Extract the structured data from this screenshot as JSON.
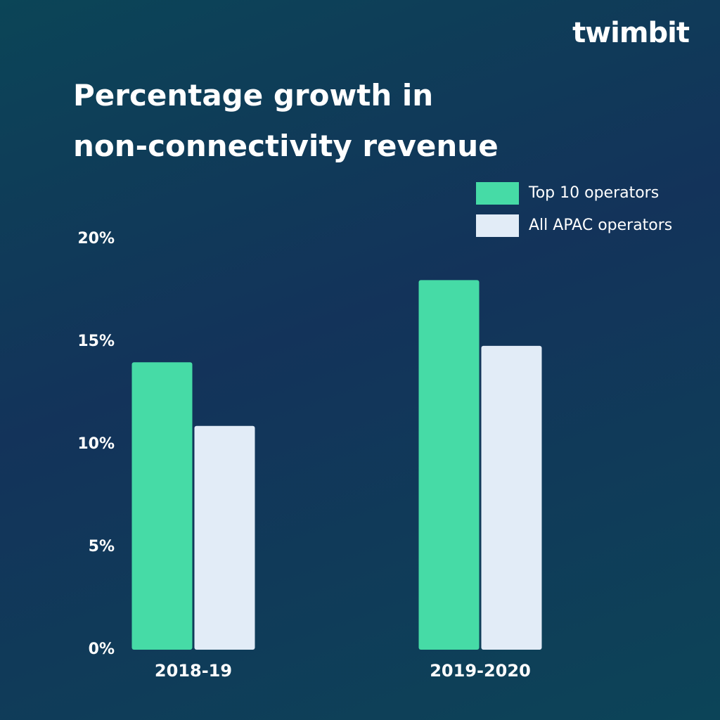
{
  "chart_data": {
    "type": "bar",
    "brand": "twimbit",
    "title": "Percentage growth in non-connectivity revenue",
    "categories": [
      "2018-19",
      "2019-2020"
    ],
    "series": [
      {
        "name": "Top 10 operators",
        "color": "#46dba6",
        "values": [
          14.0,
          18.0
        ]
      },
      {
        "name": "All APAC operators",
        "color": "#e2ecf7",
        "values": [
          10.9,
          14.8
        ]
      }
    ],
    "ylim": [
      0,
      20
    ],
    "yticks": [
      {
        "value": 0,
        "label": "0%"
      },
      {
        "value": 5,
        "label": "5%"
      },
      {
        "value": 10,
        "label": "10%"
      },
      {
        "value": 15,
        "label": "15%"
      },
      {
        "value": 20,
        "label": "20%"
      }
    ],
    "legend": "top-right"
  }
}
